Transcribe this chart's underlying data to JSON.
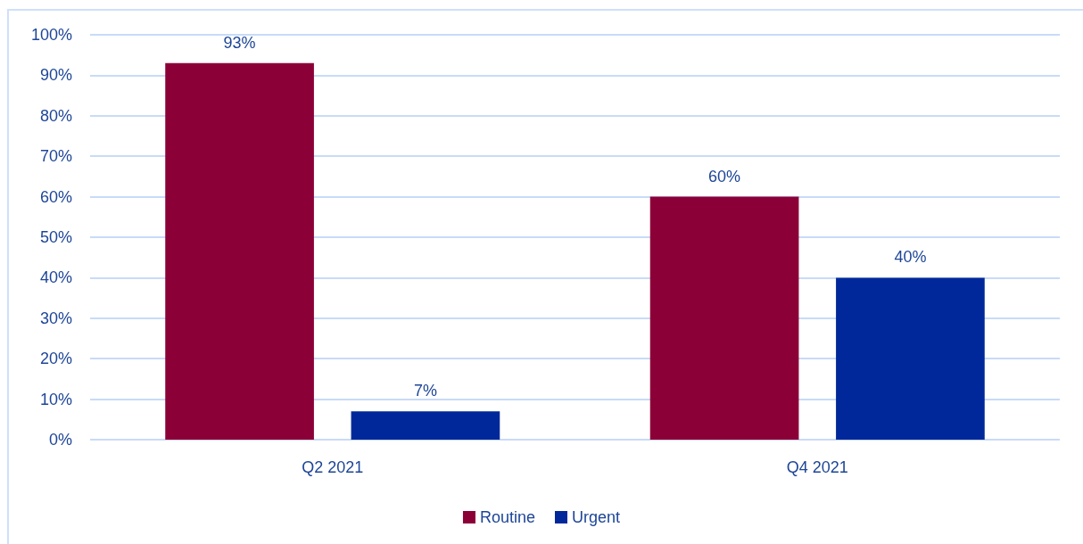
{
  "chart_data": {
    "type": "bar",
    "categories": [
      "Q2 2021",
      "Q4 2021"
    ],
    "series": [
      {
        "name": "Routine",
        "color": "#8c0038",
        "values": [
          93,
          60
        ],
        "value_labels": [
          "93%",
          "60%"
        ]
      },
      {
        "name": "Urgent",
        "color": "#00289a",
        "values": [
          7,
          40
        ],
        "value_labels": [
          "7%",
          "40%"
        ]
      }
    ],
    "ylim": [
      0,
      100
    ],
    "yticks": [
      {
        "value": 0,
        "label": "0%"
      },
      {
        "value": 10,
        "label": "10%"
      },
      {
        "value": 20,
        "label": "20%"
      },
      {
        "value": 30,
        "label": "30%"
      },
      {
        "value": 40,
        "label": "40%"
      },
      {
        "value": 50,
        "label": "50%"
      },
      {
        "value": 60,
        "label": "60%"
      },
      {
        "value": 70,
        "label": "70%"
      },
      {
        "value": 80,
        "label": "80%"
      },
      {
        "value": 90,
        "label": "90%"
      },
      {
        "value": 100,
        "label": "100%"
      }
    ],
    "grid": "y",
    "legend": "bottom"
  }
}
